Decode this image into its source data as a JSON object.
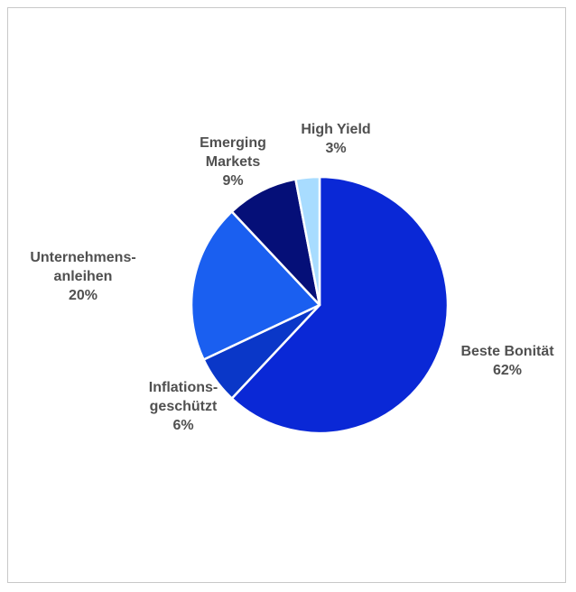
{
  "chart_data": {
    "type": "pie",
    "title": "",
    "start_angle_deg": 0,
    "direction": "clockwise",
    "slices": [
      {
        "label": [
          "Beste Bonität"
        ],
        "pct_text": "62%",
        "value": 62,
        "color": "#0a28d6"
      },
      {
        "label": [
          "Inflations-",
          "geschützt"
        ],
        "pct_text": "6%",
        "value": 6,
        "color": "#0a37c8"
      },
      {
        "label": [
          "Unternehmens-",
          "anleihen"
        ],
        "pct_text": "20%",
        "value": 20,
        "color": "#1a5ff0"
      },
      {
        "label": [
          "Emerging",
          "Markets"
        ],
        "pct_text": "9%",
        "value": 9,
        "color": "#050f78"
      },
      {
        "label": [
          "High Yield"
        ],
        "pct_text": "3%",
        "value": 3,
        "color": "#a8dcff"
      }
    ],
    "legend": "none",
    "label_color": "#505050"
  }
}
